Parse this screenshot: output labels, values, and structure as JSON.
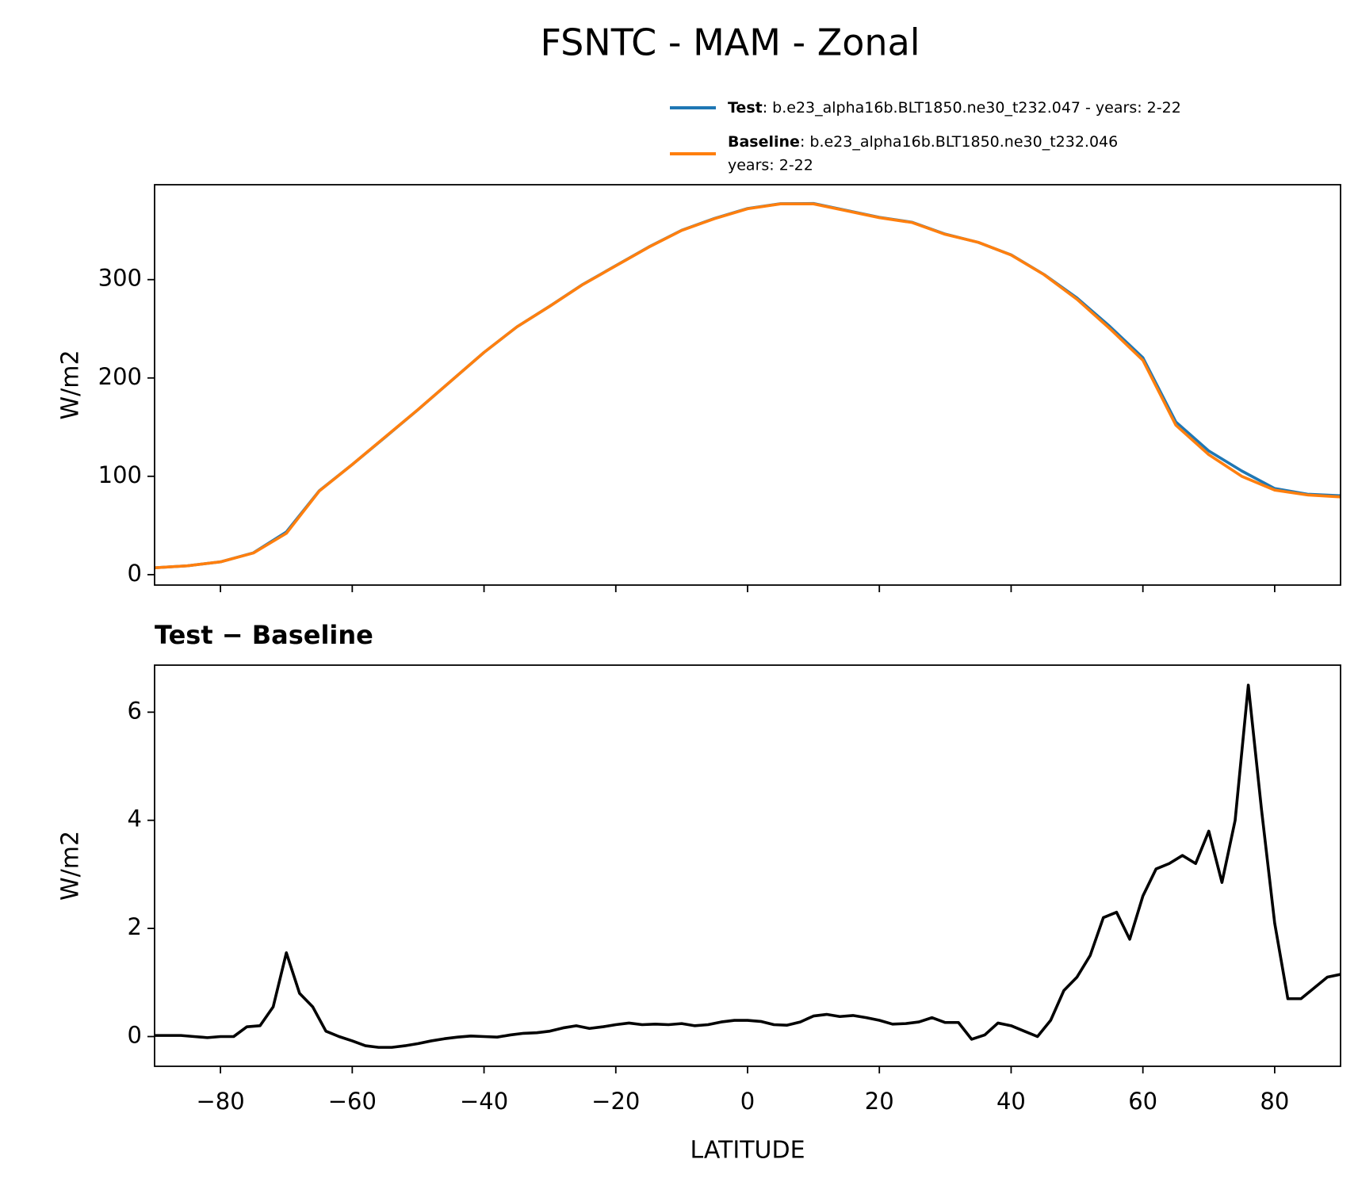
{
  "chart_data": [
    {
      "type": "line",
      "title": "FSNTC - MAM - Zonal",
      "ylabel": "W/m2",
      "x": [
        -90,
        -85,
        -80,
        -75,
        -70,
        -65,
        -60,
        -55,
        -50,
        -45,
        -40,
        -35,
        -30,
        -25,
        -20,
        -15,
        -10,
        -5,
        0,
        5,
        10,
        15,
        20,
        25,
        30,
        35,
        40,
        45,
        50,
        55,
        60,
        65,
        70,
        75,
        80,
        85,
        90
      ],
      "series": [
        {
          "name": "Test",
          "description": [
            ": b.e23_alpha16b.BLT1850.ne30_t232.047 - years: 2-22"
          ],
          "color": "#1f77b4",
          "values": [
            7,
            9,
            13,
            22.2,
            43.4,
            85.3,
            112,
            139.8,
            167.9,
            197,
            226,
            252,
            273.1,
            295.2,
            314.2,
            333.2,
            350.2,
            362.3,
            372.3,
            377.2,
            377.4,
            370.4,
            363.3,
            358.3,
            346.3,
            337.9,
            325.2,
            305.2,
            281.3,
            252.3,
            220.6,
            155.3,
            125.8,
            105.5,
            87.6,
            81.8,
            80.2
          ]
        },
        {
          "name": "Baseline",
          "description": [
            ": b.e23_alpha16b.BLT1850.ne30_t232.046",
            "years: 2-22"
          ],
          "color": "#ff7f0e",
          "values": [
            7,
            9,
            13,
            22,
            42,
            85,
            112,
            140,
            168,
            197,
            226,
            252,
            273,
            295,
            314,
            333,
            350,
            362,
            372,
            377,
            377,
            370,
            363,
            358,
            346,
            338,
            325,
            305,
            280,
            250,
            218,
            152,
            122,
            100,
            86,
            81,
            79
          ]
        }
      ],
      "xlim": [
        -90,
        90
      ],
      "ylim": [
        -10.6,
        396.5
      ],
      "xticks": [
        -80,
        -60,
        -40,
        -20,
        0,
        20,
        40,
        60,
        80
      ],
      "yticks": [
        0,
        100,
        200,
        300
      ]
    },
    {
      "type": "line",
      "title": "Test − Baseline",
      "ylabel": "W/m2",
      "xlabel": "LATITUDE",
      "x": [
        -90,
        -88,
        -86,
        -84,
        -82,
        -80,
        -78,
        -76,
        -74,
        -72,
        -70,
        -68,
        -66,
        -64,
        -62,
        -60,
        -58,
        -56,
        -54,
        -52,
        -50,
        -48,
        -46,
        -44,
        -42,
        -40,
        -38,
        -36,
        -34,
        -32,
        -30,
        -28,
        -26,
        -24,
        -22,
        -20,
        -18,
        -16,
        -14,
        -12,
        -10,
        -8,
        -6,
        -4,
        -2,
        0,
        2,
        4,
        6,
        8,
        10,
        12,
        14,
        16,
        18,
        20,
        22,
        24,
        26,
        28,
        30,
        32,
        34,
        36,
        38,
        40,
        42,
        44,
        46,
        48,
        50,
        52,
        54,
        56,
        58,
        60,
        62,
        64,
        66,
        68,
        70,
        72,
        74,
        76,
        78,
        80,
        82,
        84,
        86,
        88,
        90
      ],
      "series": [
        {
          "name": "Test − Baseline",
          "color": "#000000",
          "values": [
            0.02,
            0.02,
            0.02,
            0.0,
            -0.02,
            0.0,
            0.0,
            0.18,
            0.2,
            0.55,
            1.55,
            0.8,
            0.55,
            0.1,
            0.0,
            -0.08,
            -0.17,
            -0.2,
            -0.2,
            -0.17,
            -0.13,
            -0.08,
            -0.04,
            -0.01,
            0.01,
            0.0,
            -0.01,
            0.03,
            0.06,
            0.07,
            0.1,
            0.16,
            0.2,
            0.15,
            0.18,
            0.22,
            0.25,
            0.22,
            0.23,
            0.22,
            0.24,
            0.2,
            0.22,
            0.27,
            0.3,
            0.3,
            0.28,
            0.22,
            0.21,
            0.27,
            0.38,
            0.41,
            0.37,
            0.39,
            0.35,
            0.3,
            0.23,
            0.24,
            0.27,
            0.35,
            0.26,
            0.26,
            -0.05,
            0.03,
            0.25,
            0.2,
            0.1,
            0.0,
            0.3,
            0.85,
            1.1,
            1.5,
            2.2,
            2.3,
            1.8,
            2.6,
            3.1,
            3.2,
            3.35,
            3.2,
            3.8,
            2.85,
            4.0,
            6.5,
            4.2,
            2.1,
            0.7,
            0.7,
            0.9,
            1.1,
            1.15
          ]
        }
      ],
      "xlim": [
        -90,
        90
      ],
      "ylim": [
        -0.55,
        6.87
      ],
      "xticks": [
        {
          "value": -80,
          "label": "−80"
        },
        {
          "value": -60,
          "label": "−60"
        },
        {
          "value": -40,
          "label": "−40"
        },
        {
          "value": -20,
          "label": "−20"
        },
        0,
        20,
        40,
        60,
        80
      ],
      "yticks": [
        0,
        2,
        4,
        6
      ]
    }
  ]
}
